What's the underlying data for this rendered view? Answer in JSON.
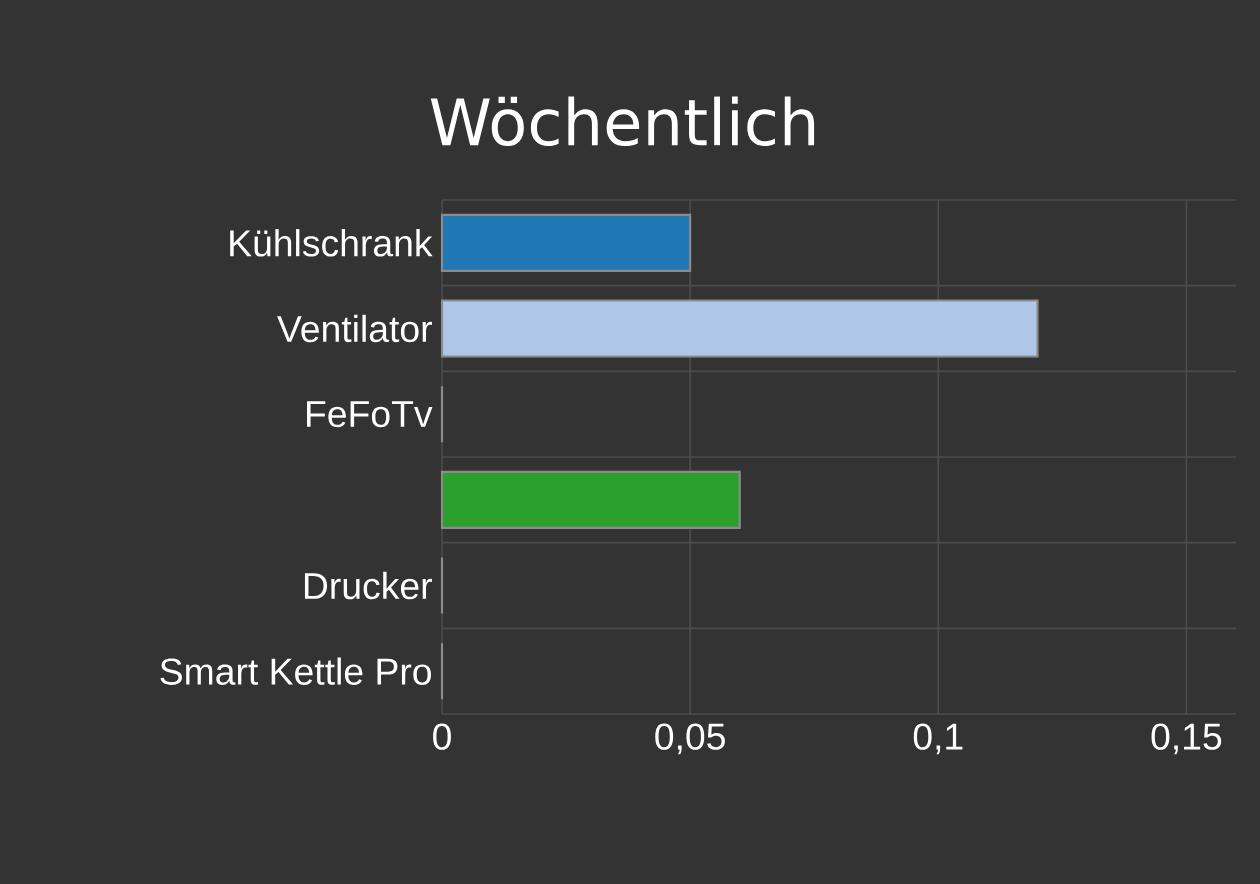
{
  "chart_data": {
    "type": "bar",
    "orientation": "horizontal",
    "title": "Wöchentlich",
    "categories": [
      "Kühlschrank",
      "Ventilator",
      "FeFoTv",
      null,
      "Drucker",
      "Smart Kettle Pro"
    ],
    "values": [
      0.05,
      0.12,
      0,
      0.06,
      0,
      0
    ],
    "colors": [
      "#1f77b4",
      "#aec7e8",
      "#1f77b4",
      "#2ca02c",
      "#1f77b4",
      "#1f77b4"
    ],
    "xlim": [
      0,
      0.16
    ],
    "xticks": [
      0,
      {
        "value": 0.05,
        "label": "0,05"
      },
      {
        "value": 0.1,
        "label": "0,1"
      },
      {
        "value": 0.15,
        "label": "0,15"
      }
    ],
    "grid": true
  }
}
